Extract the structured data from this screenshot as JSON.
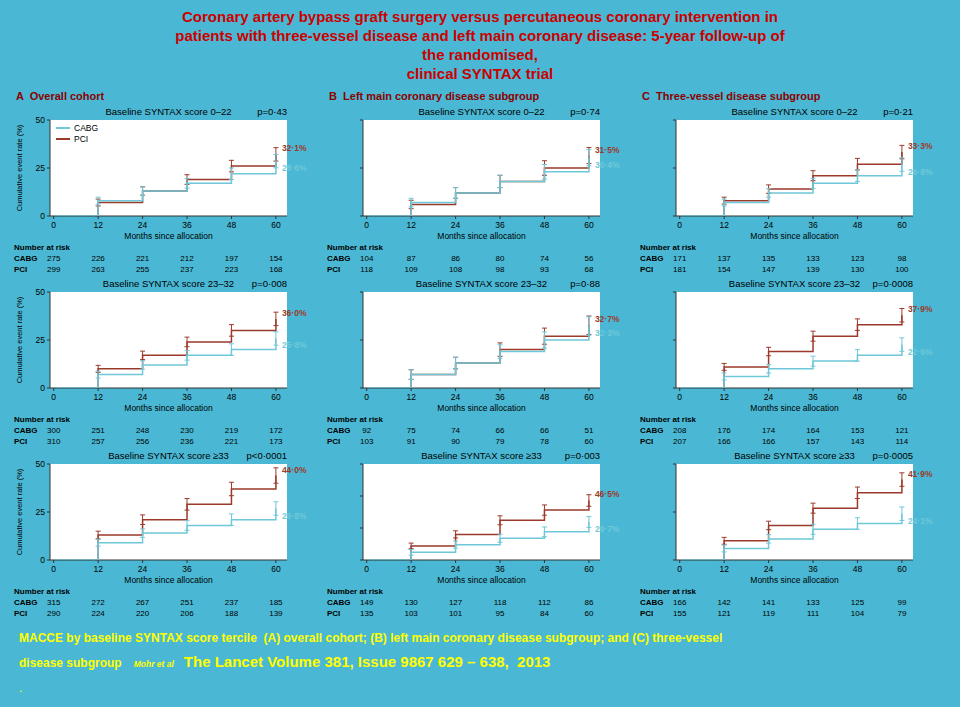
{
  "title": [
    "Coronary artery bypass graft surgery versus percutaneous coronary intervention in",
    "patients with three-vessel disease and left main coronary disease: 5-year follow-up of",
    "the randomised,",
    "clinical SYNTAX trial"
  ],
  "column_titles": [
    "A  Overall cohort",
    "B  Left main coronary disease subgroup",
    "C  Three-vessel disease subgroup"
  ],
  "footer": [
    "MACCE by baseline SYNTAX score tercile  (A) overall cohort; (B) left main coronary disease subgroup; and (C) three-vessel",
    "disease subgroup",
    "Mohr et al",
    "The Lancet Volume 381, Issue 9867 629 – 638,  2013",
    "."
  ],
  "colors": {
    "background": "#4ab8d4",
    "title": "#cc0000",
    "column_titles": "#8B0000",
    "footer": "#ffff00"
  },
  "chart_data": [
    {
      "type": "line",
      "title": "Baseline SYNTAX score 0–22",
      "annotation": "p=0·43",
      "xlabel": "Months since allocation",
      "ylabel": "Cumulative event rate (%)",
      "x": [
        0,
        12,
        24,
        36,
        48,
        60
      ],
      "xlim": [
        -1,
        63
      ],
      "xticks": [
        0,
        12,
        24,
        36,
        48,
        60
      ],
      "ylim": [
        0,
        50
      ],
      "yticks": [
        0,
        25,
        50
      ],
      "grid": false,
      "line_style": "steps",
      "data_labels": true,
      "legend": "upper left",
      "series": [
        {
          "name": "PCI",
          "color": "#9b3a2a",
          "values": [
            0,
            7,
            13,
            19,
            26,
            32.1
          ],
          "errors": [
            null,
            1.8,
            2.2,
            2.5,
            3.0,
            3.5
          ],
          "value_labels": [
            null,
            null,
            null,
            null,
            null,
            "32·1%"
          ]
        },
        {
          "name": "CABG",
          "color": "#6fc8d8",
          "values": [
            0,
            8,
            13,
            17,
            22,
            28.6
          ],
          "errors": [
            null,
            1.8,
            2.2,
            2.5,
            3.0,
            3.5
          ],
          "value_labels": [
            null,
            null,
            null,
            null,
            null,
            "28·6%"
          ]
        }
      ],
      "number_at_risk": {
        "label": "Number at risk",
        "rows": [
          {
            "name": "CABG",
            "values": [
              275,
              226,
              221,
              212,
              197,
              154
            ]
          },
          {
            "name": "PCI",
            "values": [
              299,
              263,
              255,
              237,
              223,
              168
            ]
          }
        ]
      }
    },
    {
      "type": "line",
      "title": "Baseline SYNTAX score 0–22",
      "annotation": "p=0·74",
      "xlabel": "Months since allocation",
      "tick_labels": "x",
      "x": [
        0,
        12,
        24,
        36,
        48,
        60
      ],
      "xlim": [
        -1,
        63
      ],
      "xticks": [
        0,
        12,
        24,
        36,
        48,
        60
      ],
      "ylim": [
        0,
        50
      ],
      "yticks": [
        0,
        25,
        50
      ],
      "grid": false,
      "line_style": "steps",
      "data_labels": true,
      "series": [
        {
          "name": "PCI",
          "color": "#9b3a2a",
          "values": [
            0,
            6,
            12,
            18,
            25,
            31.5
          ],
          "errors": [
            null,
            2.2,
            2.8,
            3.2,
            3.8,
            4.2
          ],
          "value_labels": [
            null,
            null,
            null,
            null,
            null,
            "31·5%"
          ]
        },
        {
          "name": "CABG",
          "color": "#6fc8d8",
          "values": [
            0,
            7,
            12,
            18,
            23,
            30.4
          ],
          "errors": [
            null,
            2.2,
            2.8,
            3.2,
            3.8,
            4.2
          ],
          "value_labels": [
            null,
            null,
            null,
            null,
            null,
            "30·4%"
          ]
        }
      ],
      "number_at_risk": {
        "label": "Number at risk",
        "rows": [
          {
            "name": "CABG",
            "values": [
              104,
              87,
              86,
              80,
              74,
              56
            ]
          },
          {
            "name": "PCI",
            "values": [
              118,
              109,
              108,
              98,
              93,
              68
            ]
          }
        ]
      }
    },
    {
      "type": "line",
      "title": "Baseline SYNTAX score 0–22",
      "annotation": "p=0·21",
      "xlabel": "Months since allocation",
      "tick_labels": "x",
      "x": [
        0,
        12,
        24,
        36,
        48,
        60
      ],
      "xlim": [
        -1,
        63
      ],
      "xticks": [
        0,
        12,
        24,
        36,
        48,
        60
      ],
      "ylim": [
        0,
        50
      ],
      "yticks": [
        0,
        25,
        50
      ],
      "grid": false,
      "line_style": "steps",
      "data_labels": true,
      "series": [
        {
          "name": "PCI",
          "color": "#9b3a2a",
          "values": [
            0,
            8,
            14,
            21,
            27,
            33.3
          ],
          "errors": [
            null,
            1.8,
            2.2,
            2.6,
            3.0,
            3.5
          ],
          "value_labels": [
            null,
            null,
            null,
            null,
            null,
            "33·3%"
          ]
        },
        {
          "name": "CABG",
          "color": "#6fc8d8",
          "values": [
            0,
            7,
            12,
            17,
            21,
            26.8
          ],
          "errors": [
            null,
            1.8,
            2.2,
            2.6,
            3.0,
            3.5
          ],
          "value_labels": [
            null,
            null,
            null,
            null,
            null,
            "26·8%"
          ]
        }
      ],
      "number_at_risk": {
        "label": "Number at risk",
        "rows": [
          {
            "name": "CABG",
            "values": [
              171,
              137,
              135,
              133,
              123,
              98
            ]
          },
          {
            "name": "PCI",
            "values": [
              181,
              154,
              147,
              139,
              130,
              100
            ]
          }
        ]
      }
    },
    {
      "type": "line",
      "title": "Baseline SYNTAX score 23–32",
      "annotation": "p=0·008",
      "xlabel": "Months since allocation",
      "ylabel": "Cumulative event rate (%)",
      "x": [
        0,
        12,
        24,
        36,
        48,
        60
      ],
      "xlim": [
        -1,
        63
      ],
      "xticks": [
        0,
        12,
        24,
        36,
        48,
        60
      ],
      "ylim": [
        0,
        50
      ],
      "yticks": [
        0,
        25,
        50
      ],
      "grid": false,
      "line_style": "steps",
      "data_labels": true,
      "series": [
        {
          "name": "PCI",
          "color": "#9b3a2a",
          "values": [
            0,
            10,
            17,
            24,
            30,
            36.0
          ],
          "errors": [
            null,
            1.8,
            2.2,
            2.5,
            3.0,
            3.5
          ],
          "value_labels": [
            null,
            null,
            null,
            null,
            null,
            "36·0%"
          ]
        },
        {
          "name": "CABG",
          "color": "#6fc8d8",
          "values": [
            0,
            7,
            12,
            17,
            20,
            25.8
          ],
          "errors": [
            null,
            1.8,
            2.2,
            2.5,
            3.0,
            3.5
          ],
          "value_labels": [
            null,
            null,
            null,
            null,
            null,
            "25·8%"
          ]
        }
      ],
      "number_at_risk": {
        "label": "Number at risk",
        "rows": [
          {
            "name": "CABG",
            "values": [
              300,
              251,
              248,
              230,
              219,
              172
            ]
          },
          {
            "name": "PCI",
            "values": [
              310,
              257,
              256,
              236,
              221,
              173
            ]
          }
        ]
      }
    },
    {
      "type": "line",
      "title": "Baseline SYNTAX score 23–32",
      "annotation": "p=0·88",
      "xlabel": "Months since allocation",
      "tick_labels": "x",
      "x": [
        0,
        12,
        24,
        36,
        48,
        60
      ],
      "xlim": [
        -1,
        63
      ],
      "xticks": [
        0,
        12,
        24,
        36,
        48,
        60
      ],
      "ylim": [
        0,
        50
      ],
      "yticks": [
        0,
        25,
        50
      ],
      "grid": false,
      "line_style": "steps",
      "data_labels": true,
      "series": [
        {
          "name": "PCI",
          "color": "#9b3a2a",
          "values": [
            0,
            7,
            13,
            20,
            27,
            32.7
          ],
          "errors": [
            null,
            2.5,
            3.0,
            3.5,
            4.2,
            4.8
          ],
          "value_labels": [
            null,
            null,
            null,
            null,
            null,
            "32·7%"
          ]
        },
        {
          "name": "CABG",
          "color": "#6fc8d8",
          "values": [
            0,
            7,
            13,
            19,
            25,
            32.3
          ],
          "errors": [
            null,
            2.5,
            3.0,
            3.5,
            4.2,
            4.8
          ],
          "value_labels": [
            null,
            null,
            null,
            null,
            null,
            "32·3%"
          ]
        }
      ],
      "number_at_risk": {
        "label": "Number at risk",
        "rows": [
          {
            "name": "CABG",
            "values": [
              92,
              75,
              74,
              66,
              66,
              51
            ]
          },
          {
            "name": "PCI",
            "values": [
              103,
              91,
              90,
              79,
              78,
              60
            ]
          }
        ]
      }
    },
    {
      "type": "line",
      "title": "Baseline SYNTAX score 23–32",
      "annotation": "p=0·0008",
      "xlabel": "Months since allocation",
      "tick_labels": "x",
      "x": [
        0,
        12,
        24,
        36,
        48,
        60
      ],
      "xlim": [
        -1,
        63
      ],
      "xticks": [
        0,
        12,
        24,
        36,
        48,
        60
      ],
      "ylim": [
        0,
        50
      ],
      "yticks": [
        0,
        25,
        50
      ],
      "grid": false,
      "line_style": "steps",
      "data_labels": true,
      "series": [
        {
          "name": "PCI",
          "color": "#9b3a2a",
          "values": [
            0,
            11,
            19,
            27,
            33,
            37.9
          ],
          "errors": [
            null,
            1.8,
            2.2,
            2.6,
            3.0,
            3.5
          ],
          "value_labels": [
            null,
            null,
            null,
            null,
            null,
            "37·9%"
          ]
        },
        {
          "name": "CABG",
          "color": "#6fc8d8",
          "values": [
            0,
            6,
            10,
            14,
            17,
            22.6
          ],
          "errors": [
            null,
            1.8,
            2.2,
            2.6,
            3.0,
            3.5
          ],
          "value_labels": [
            null,
            null,
            null,
            null,
            null,
            "22·6%"
          ]
        }
      ],
      "number_at_risk": {
        "label": "Number at risk",
        "rows": [
          {
            "name": "CABG",
            "values": [
              208,
              176,
              174,
              164,
              153,
              121
            ]
          },
          {
            "name": "PCI",
            "values": [
              207,
              166,
              166,
              157,
              143,
              114
            ]
          }
        ]
      }
    },
    {
      "type": "line",
      "title": "Baseline SYNTAX score ≥33",
      "annotation": "p<0·0001",
      "xlabel": "Months since allocation",
      "ylabel": "Cumulative event rate (%)",
      "x": [
        0,
        12,
        24,
        36,
        48,
        60
      ],
      "xlim": [
        -1,
        63
      ],
      "xticks": [
        0,
        12,
        24,
        36,
        48,
        60
      ],
      "ylim": [
        0,
        50
      ],
      "yticks": [
        0,
        25,
        50
      ],
      "grid": false,
      "line_style": "steps",
      "data_labels": true,
      "series": [
        {
          "name": "PCI",
          "color": "#9b3a2a",
          "values": [
            0,
            13,
            21,
            29,
            37,
            44.0
          ],
          "errors": [
            null,
            2.0,
            2.5,
            3.0,
            3.5,
            4.0
          ],
          "value_labels": [
            null,
            null,
            null,
            null,
            null,
            "44·0%"
          ]
        },
        {
          "name": "CABG",
          "color": "#6fc8d8",
          "values": [
            0,
            9,
            14,
            18,
            21,
            26.8
          ],
          "errors": [
            null,
            1.8,
            2.2,
            2.5,
            3.0,
            3.5
          ],
          "value_labels": [
            null,
            null,
            null,
            null,
            null,
            "26·8%"
          ]
        }
      ],
      "number_at_risk": {
        "label": "Number at risk",
        "rows": [
          {
            "name": "CABG",
            "values": [
              315,
              272,
              267,
              251,
              237,
              185
            ]
          },
          {
            "name": "PCI",
            "values": [
              290,
              224,
              220,
              206,
              188,
              139
            ]
          }
        ]
      }
    },
    {
      "type": "line",
      "title": "Baseline SYNTAX score ≥33",
      "annotation": "p=0·003",
      "xlabel": "Months since allocation",
      "tick_labels": "x",
      "x": [
        0,
        12,
        24,
        36,
        48,
        60
      ],
      "xlim": [
        -1,
        63
      ],
      "xticks": [
        0,
        12,
        24,
        36,
        48,
        60
      ],
      "ylim": [
        0,
        75
      ],
      "yticks": [
        0,
        25,
        50,
        75
      ],
      "grid": false,
      "line_style": "steps",
      "data_labels": true,
      "series": [
        {
          "name": "PCI",
          "color": "#9b3a2a",
          "values": [
            0,
            11,
            20,
            31,
            39,
            46.5
          ],
          "errors": [
            null,
            2.2,
            2.8,
            3.5,
            4.0,
            4.5
          ],
          "value_labels": [
            null,
            null,
            null,
            null,
            null,
            "46·5%"
          ]
        },
        {
          "name": "CABG",
          "color": "#6fc8d8",
          "values": [
            0,
            6,
            12,
            17,
            22,
            29.7
          ],
          "errors": [
            null,
            2.2,
            2.8,
            3.2,
            3.8,
            4.2
          ],
          "value_labels": [
            null,
            null,
            null,
            null,
            null,
            "29·7%"
          ]
        }
      ],
      "number_at_risk": {
        "label": "Number at risk",
        "rows": [
          {
            "name": "CABG",
            "values": [
              149,
              130,
              127,
              118,
              112,
              86
            ]
          },
          {
            "name": "PCI",
            "values": [
              135,
              103,
              101,
              95,
              84,
              60
            ]
          }
        ]
      }
    },
    {
      "type": "line",
      "title": "Baseline SYNTAX score ≥33",
      "annotation": "p=0·0005",
      "xlabel": "Months since allocation",
      "tick_labels": "x",
      "x": [
        0,
        12,
        24,
        36,
        48,
        60
      ],
      "xlim": [
        -1,
        63
      ],
      "xticks": [
        0,
        12,
        24,
        36,
        48,
        60
      ],
      "ylim": [
        0,
        50
      ],
      "yticks": [
        0,
        25,
        50
      ],
      "grid": false,
      "line_style": "steps",
      "data_labels": true,
      "series": [
        {
          "name": "PCI",
          "color": "#9b3a2a",
          "values": [
            0,
            10,
            18,
            27,
            35,
            41.9
          ],
          "errors": [
            null,
            1.8,
            2.2,
            2.6,
            3.0,
            3.5
          ],
          "value_labels": [
            null,
            null,
            null,
            null,
            null,
            "41·9%"
          ]
        },
        {
          "name": "CABG",
          "color": "#6fc8d8",
          "values": [
            0,
            6,
            11,
            16,
            19,
            24.1
          ],
          "errors": [
            null,
            1.8,
            2.2,
            2.6,
            3.0,
            3.5
          ],
          "value_labels": [
            null,
            null,
            null,
            null,
            null,
            "24·1%"
          ]
        }
      ],
      "number_at_risk": {
        "label": "Number at risk",
        "rows": [
          {
            "name": "CABG",
            "values": [
              166,
              142,
              141,
              133,
              125,
              99
            ]
          },
          {
            "name": "PCI",
            "values": [
              155,
              121,
              119,
              111,
              104,
              79
            ]
          }
        ]
      }
    }
  ]
}
